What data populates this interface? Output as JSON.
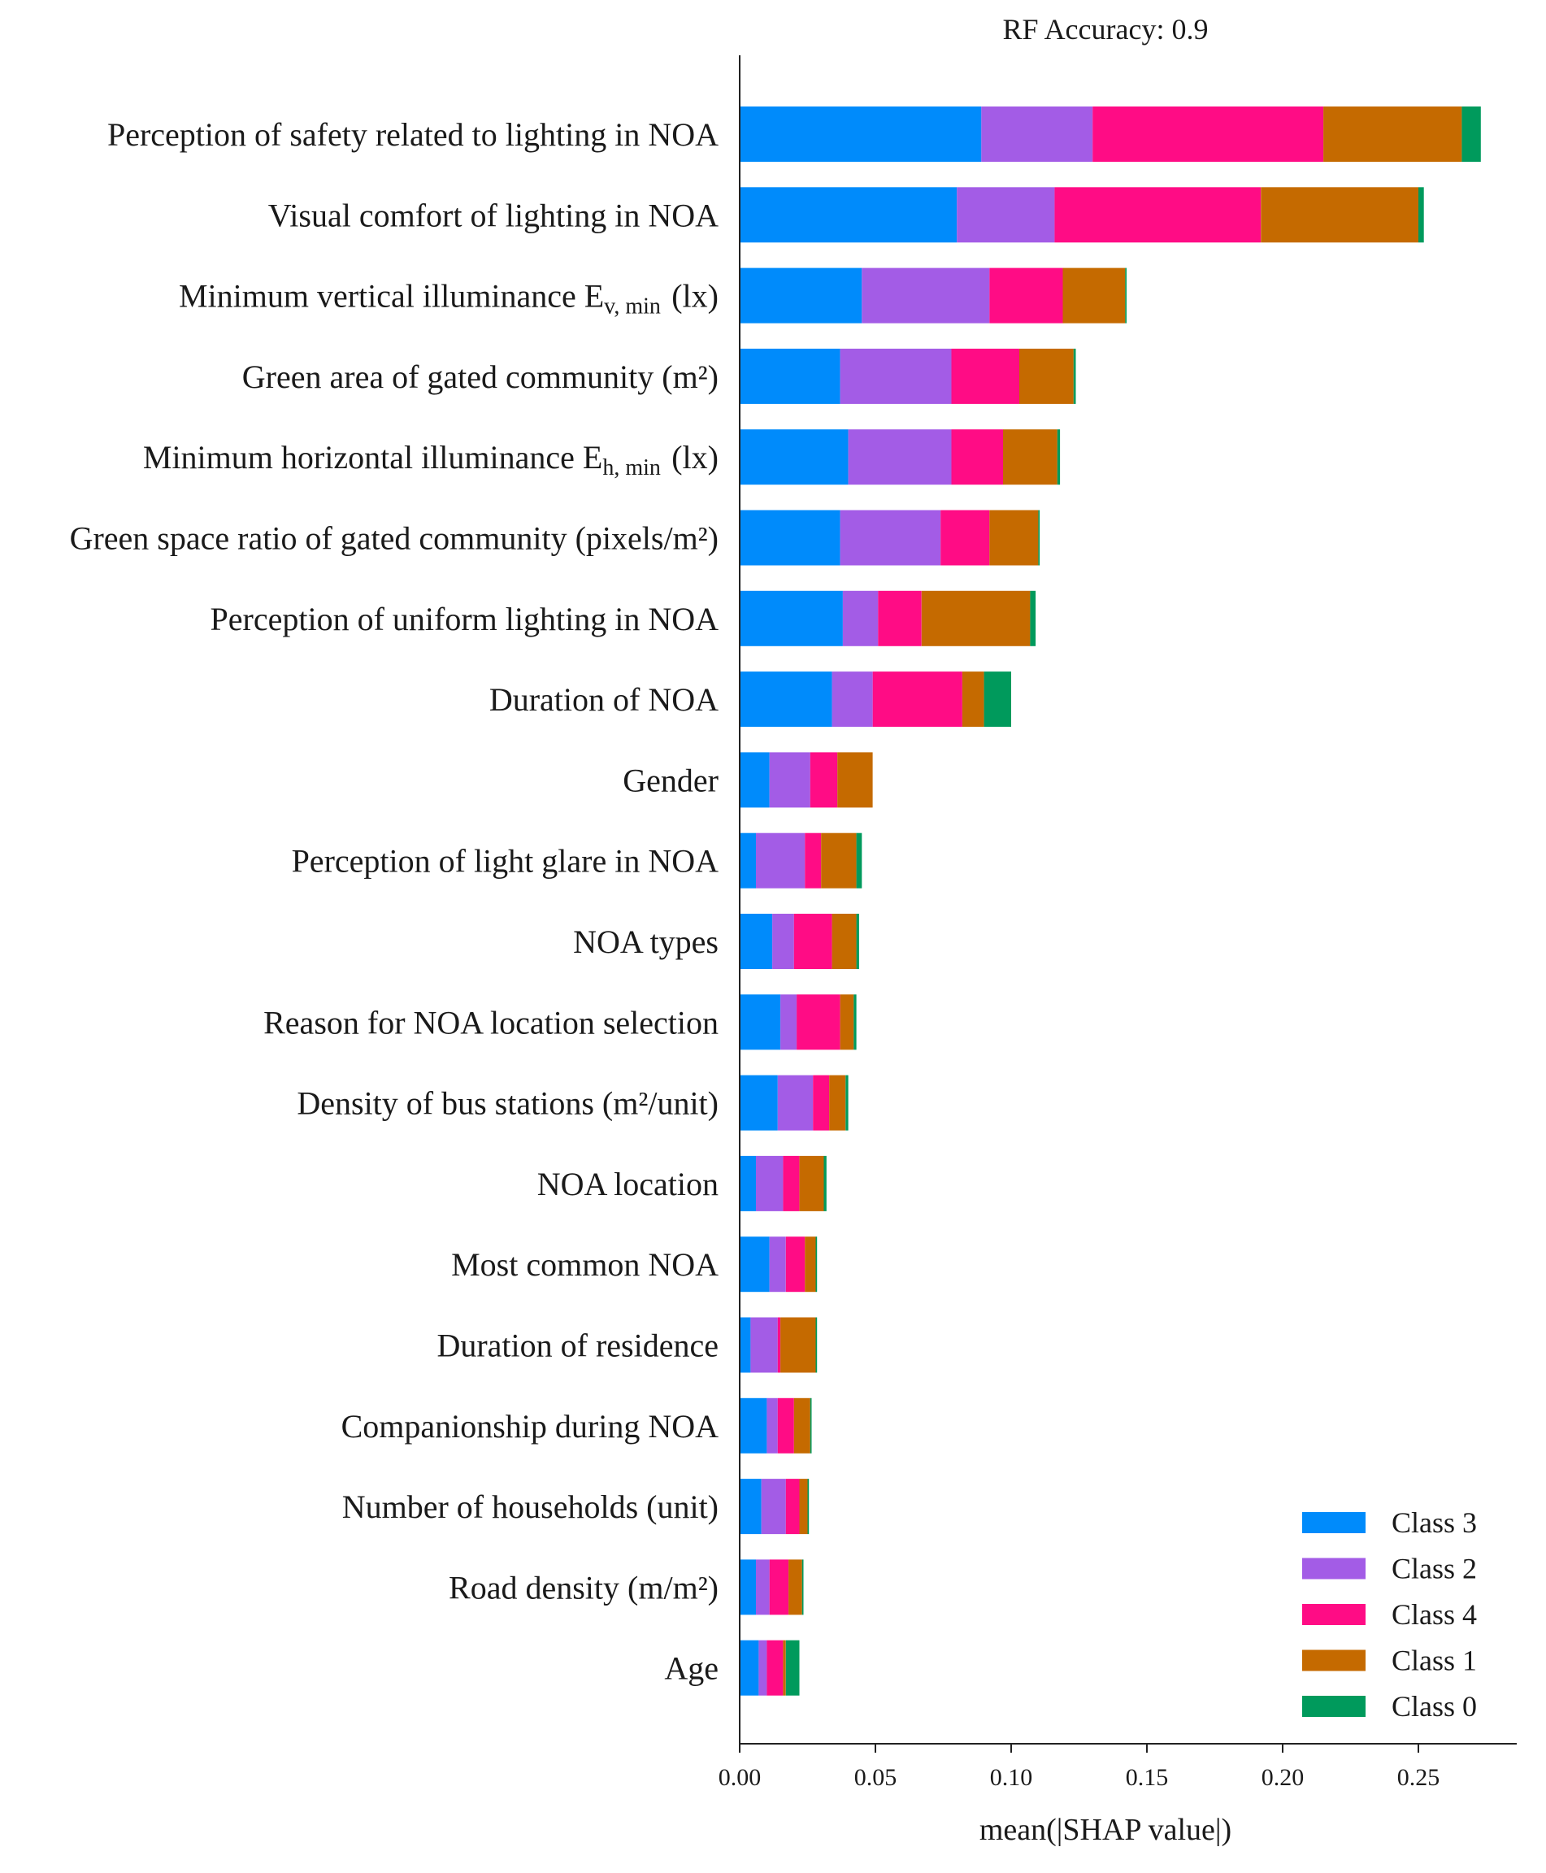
{
  "chart_data": {
    "type": "bar",
    "stacked": true,
    "orientation": "horizontal",
    "title": "RF Accuracy: 0.9",
    "xlabel": "mean(|SHAP value|)",
    "ylabel": "",
    "xlim": [
      0,
      0.28
    ],
    "xticks": [
      "0.00",
      "0.05",
      "0.10",
      "0.15",
      "0.20",
      "0.25"
    ],
    "grid": false,
    "legend_position": "bottom-right",
    "categories": [
      "Perception of safety related to lighting in NOA",
      "Visual comfort of lighting in NOA",
      "Minimum vertical illuminance E_{v, min} (lx)",
      "Green area of gated community (m²)",
      "Minimum horizontal illuminance E_{h, min} (lx)",
      "Green space ratio of gated community (pixels/m²)",
      "Perception of uniform lighting in NOA",
      "Duration of NOA",
      "Gender",
      "Perception of light glare in NOA",
      "NOA types",
      "Reason for NOA location selection",
      "Density of bus stations (m²/unit)",
      "NOA location",
      "Most common  NOA",
      "Duration of residence",
      "Companionship during NOA",
      "Number of households (unit)",
      "Road density (m/m²)",
      "Age"
    ],
    "series": [
      {
        "name": "Class 3",
        "color": "#008bfb",
        "values": [
          0.089,
          0.08,
          0.045,
          0.037,
          0.04,
          0.037,
          0.038,
          0.034,
          0.011,
          0.006,
          0.012,
          0.015,
          0.014,
          0.006,
          0.011,
          0.004,
          0.01,
          0.008,
          0.006,
          0.007
        ]
      },
      {
        "name": "Class 2",
        "color": "#a35ce6",
        "values": [
          0.041,
          0.036,
          0.047,
          0.041,
          0.038,
          0.037,
          0.013,
          0.015,
          0.015,
          0.018,
          0.008,
          0.006,
          0.013,
          0.01,
          0.006,
          0.01,
          0.004,
          0.009,
          0.005,
          0.003
        ]
      },
      {
        "name": "Class 4",
        "color": "#ff0c85",
        "values": [
          0.085,
          0.076,
          0.027,
          0.025,
          0.019,
          0.018,
          0.016,
          0.033,
          0.01,
          0.006,
          0.014,
          0.016,
          0.006,
          0.006,
          0.007,
          0.001,
          0.006,
          0.005,
          0.007,
          0.006
        ]
      },
      {
        "name": "Class 1",
        "color": "#c56a00",
        "values": [
          0.051,
          0.058,
          0.023,
          0.02,
          0.02,
          0.018,
          0.04,
          0.008,
          0.013,
          0.013,
          0.009,
          0.005,
          0.006,
          0.009,
          0.004,
          0.013,
          0.006,
          0.003,
          0.005,
          0.001
        ]
      },
      {
        "name": "Class 0",
        "color": "#009a5c",
        "values": [
          0.007,
          0.002,
          0.0005,
          0.0008,
          0.001,
          0.0005,
          0.002,
          0.01,
          0.0,
          0.002,
          0.001,
          0.001,
          0.001,
          0.001,
          0.0005,
          0.0005,
          0.0005,
          0.0005,
          0.0005,
          0.005
        ]
      }
    ]
  }
}
